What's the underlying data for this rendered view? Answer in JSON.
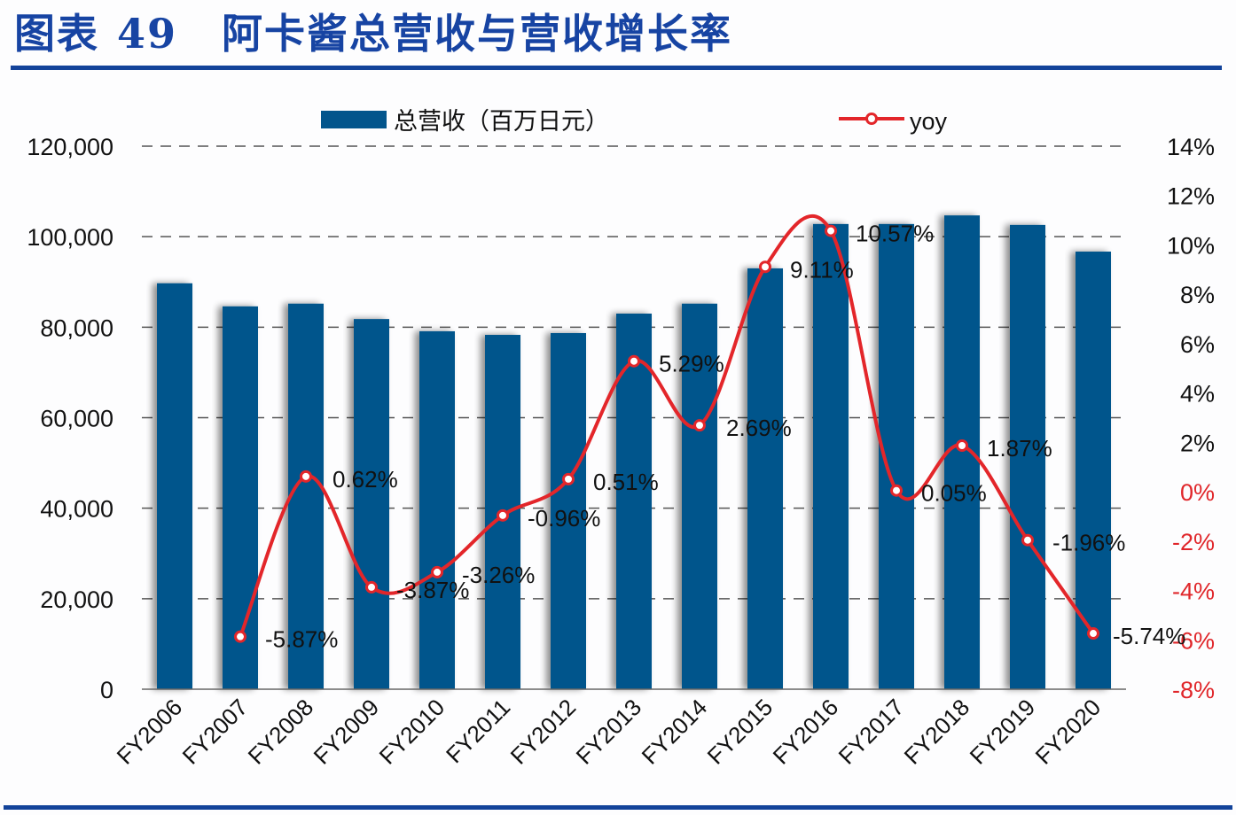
{
  "header": {
    "figure_label": "图表",
    "figure_number": "49",
    "title": "阿卡酱总营收与营收增长率"
  },
  "legend": {
    "bar_label": "总营收（百万日元）",
    "line_label": "yoy"
  },
  "colors": {
    "bar": "#03558c",
    "line": "#e3262a",
    "title": "#1744a3",
    "rule": "#13439a",
    "negative_axis": "#e0262a"
  },
  "left_axis": {
    "ticks": [
      "120,000",
      "100,000",
      "80,000",
      "60,000",
      "40,000",
      "20,000",
      "0"
    ]
  },
  "right_axis": {
    "ticks": [
      "14%",
      "12%",
      "10%",
      "8%",
      "6%",
      "4%",
      "2%",
      "0%",
      "-2%",
      "-4%",
      "-6%",
      "-8%"
    ]
  },
  "chart_data": {
    "type": "bar+line",
    "title": "阿卡酱总营收与营收增长率",
    "categories": [
      "FY2006",
      "FY2007",
      "FY2008",
      "FY2009",
      "FY2010",
      "FY2011",
      "FY2012",
      "FY2013",
      "FY2014",
      "FY2015",
      "FY2016",
      "FY2017",
      "FY2018",
      "FY2019",
      "FY2020"
    ],
    "series": [
      {
        "name": "总营收（百万日元）",
        "type": "bar",
        "axis": "left",
        "values": [
          89700,
          84600,
          85200,
          81800,
          79100,
          78300,
          78700,
          83000,
          85200,
          93000,
          102800,
          102800,
          104700,
          102600,
          96700
        ]
      },
      {
        "name": "yoy",
        "type": "line",
        "axis": "right",
        "values": [
          null,
          -5.87,
          0.62,
          -3.87,
          -3.26,
          -0.96,
          0.51,
          5.29,
          2.69,
          9.11,
          10.57,
          0.05,
          1.87,
          -1.96,
          -5.74
        ],
        "labels": [
          "",
          "-5.87%",
          "0.62%",
          "-3.87%",
          "-3.26%",
          "-0.96%",
          "0.51%",
          "5.29%",
          "2.69%",
          "9.11%",
          "10.57%",
          "0.05%",
          "1.87%",
          "-1.96%",
          "-5.74%"
        ]
      }
    ],
    "xlabel": "",
    "ylabel_left": "",
    "ylabel_right": "",
    "ylim_left": [
      0,
      120000
    ],
    "ylim_right": [
      -8,
      14
    ],
    "grid": "dashed horizontal at left-axis ticks",
    "legend_position": "top"
  }
}
